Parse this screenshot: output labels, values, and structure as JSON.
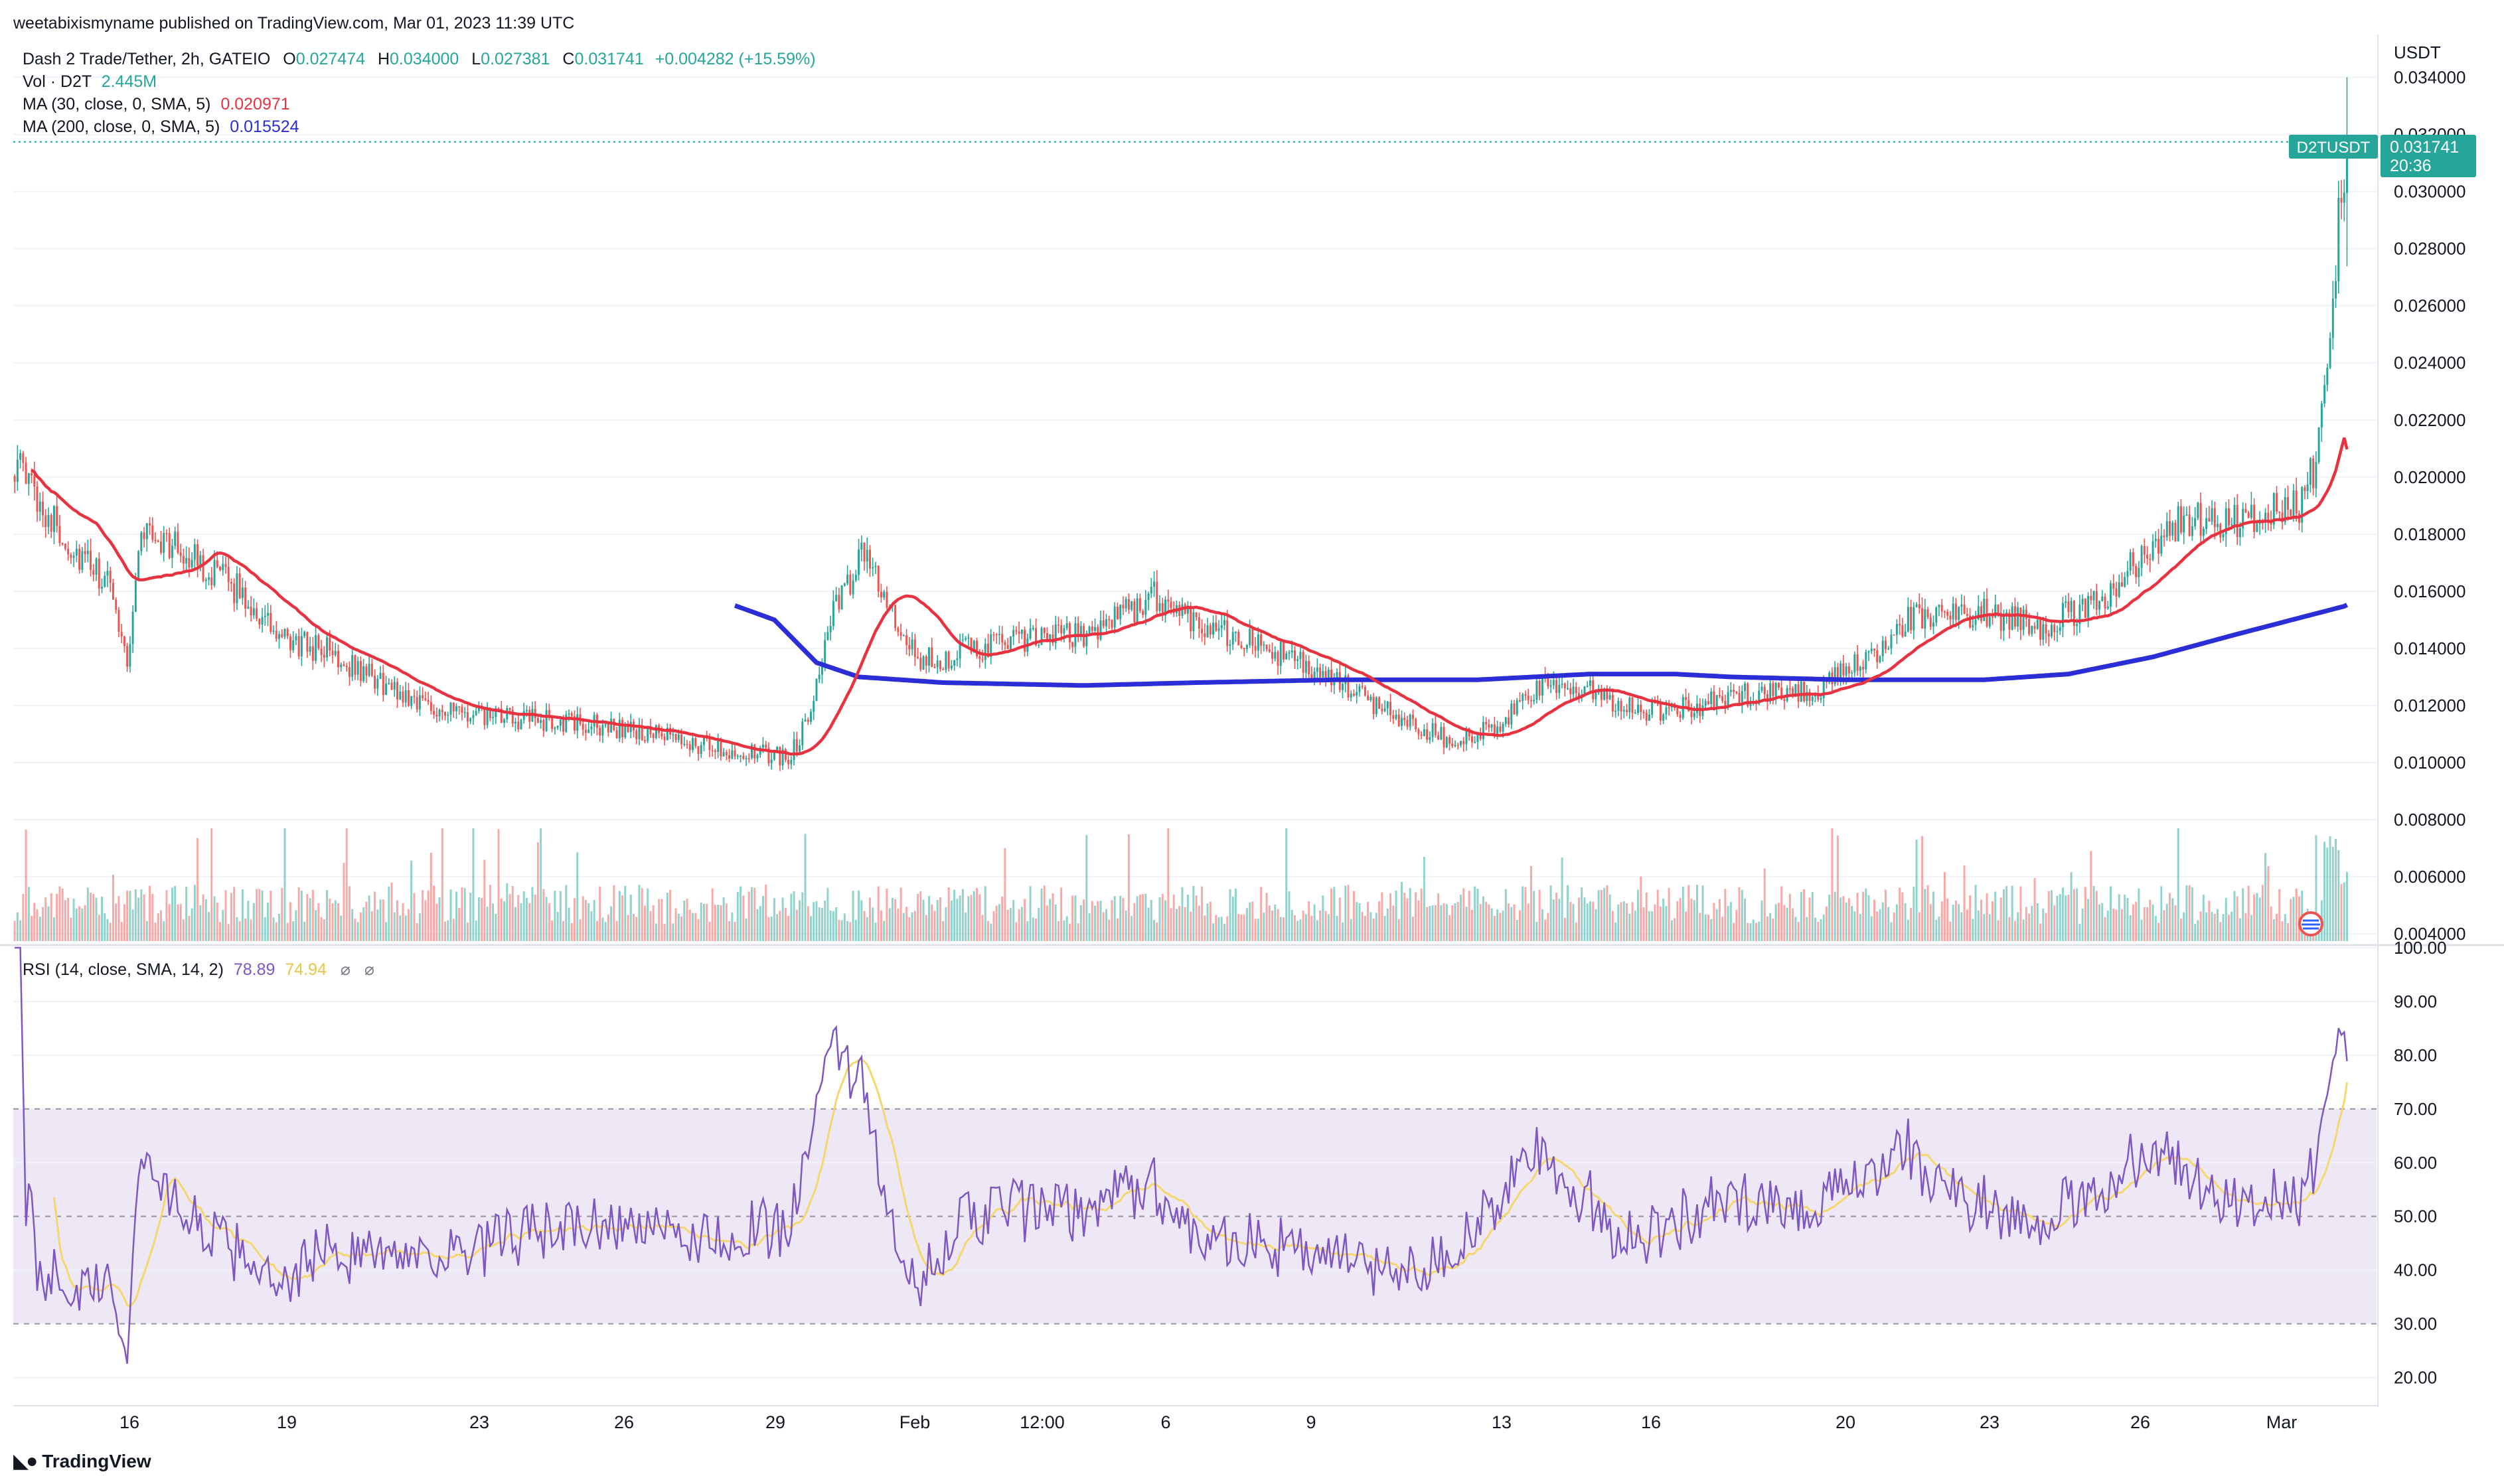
{
  "published": "weetabixismyname published on TradingView.com, Mar 01, 2023 11:39 UTC",
  "symbol": {
    "name": "Dash 2 Trade/Tether, 2h, GATEIO",
    "o_label": "O",
    "o": "0.027474",
    "h_label": "H",
    "h": "0.034000",
    "l_label": "L",
    "l": "0.027381",
    "c_label": "C",
    "c": "0.031741",
    "change": "+0.004282 (+15.59%)"
  },
  "indicators": {
    "vol_label": "Vol · D2T",
    "vol_value": "2.445M",
    "ma30_label": "MA (30, close, 0, SMA, 5)",
    "ma30_value": "0.020971",
    "ma200_label": "MA (200, close, 0, SMA, 5)",
    "ma200_value": "0.015524",
    "rsi_label": "RSI (14, close, SMA, 14, 2)",
    "rsi_value": "78.89",
    "rsi_ma_value": "74.94"
  },
  "colors": {
    "up": "#26a69a",
    "down": "#ef5350",
    "ma30": "#e8323f",
    "ma200": "#2b2dd6",
    "rsi": "#7e57c2",
    "rsi_ma": "#f5d76e",
    "rsi_band": "#ede7f6"
  },
  "price_axis": {
    "unit": "USDT",
    "ticks": [
      "0.034000",
      "0.032000",
      "0.030000",
      "0.028000",
      "0.026000",
      "0.024000",
      "0.022000",
      "0.020000",
      "0.018000",
      "0.016000",
      "0.014000",
      "0.012000",
      "0.010000",
      "0.008000",
      "0.006000",
      "0.004000"
    ],
    "last_symbol": "D2TUSDT",
    "last_price": "0.031741",
    "countdown": "20:36"
  },
  "rsi_axis": {
    "ticks": [
      "100.00",
      "90.00",
      "80.00",
      "70.00",
      "60.00",
      "50.00",
      "40.00",
      "30.00",
      "20.00"
    ]
  },
  "time_axis": {
    "labels": [
      "16",
      "19",
      "23",
      "26",
      "29",
      "Feb",
      "12:00",
      "6",
      "9",
      "13",
      "16",
      "20",
      "23",
      "26",
      "Mar"
    ]
  },
  "chart_data": {
    "type": "candlestick",
    "symbol": "D2TUSDT",
    "interval": "2h",
    "price_range": [
      0.0037,
      0.0355
    ],
    "rsi_range": [
      15,
      100
    ],
    "rsi_band": [
      30,
      70
    ],
    "close_anchors": [
      [
        0,
        0.0205
      ],
      [
        20,
        0.0175
      ],
      [
        35,
        0.016
      ],
      [
        40,
        0.0135
      ],
      [
        45,
        0.0182
      ],
      [
        58,
        0.0175
      ],
      [
        80,
        0.016
      ],
      [
        95,
        0.0142
      ],
      [
        110,
        0.014
      ],
      [
        135,
        0.0125
      ],
      [
        160,
        0.0116
      ],
      [
        185,
        0.0115
      ],
      [
        215,
        0.0112
      ],
      [
        245,
        0.0106
      ],
      [
        262,
        0.0103
      ],
      [
        275,
        0.0102
      ],
      [
        281,
        0.0113
      ],
      [
        290,
        0.015
      ],
      [
        303,
        0.0175
      ],
      [
        312,
        0.015
      ],
      [
        321,
        0.0135
      ],
      [
        350,
        0.0142
      ],
      [
        380,
        0.0145
      ],
      [
        405,
        0.0158
      ],
      [
        420,
        0.015
      ],
      [
        432,
        0.0145
      ],
      [
        450,
        0.0138
      ],
      [
        470,
        0.0128
      ],
      [
        490,
        0.0117
      ],
      [
        510,
        0.0108
      ],
      [
        528,
        0.0112
      ],
      [
        540,
        0.0126
      ],
      [
        556,
        0.0126
      ],
      [
        580,
        0.0118
      ],
      [
        600,
        0.012
      ],
      [
        620,
        0.0125
      ],
      [
        640,
        0.0125
      ],
      [
        660,
        0.0137
      ],
      [
        672,
        0.015
      ],
      [
        700,
        0.0153
      ],
      [
        720,
        0.0148
      ],
      [
        740,
        0.0155
      ],
      [
        755,
        0.0172
      ],
      [
        770,
        0.0185
      ],
      [
        790,
        0.0185
      ],
      [
        812,
        0.019
      ],
      [
        818,
        0.0205
      ],
      [
        822,
        0.024
      ],
      [
        826,
        0.029
      ],
      [
        829,
        0.0317
      ]
    ],
    "ma200_anchors": [
      [
        256,
        0.0155
      ],
      [
        270,
        0.015
      ],
      [
        285,
        0.0135
      ],
      [
        300,
        0.013
      ],
      [
        330,
        0.0128
      ],
      [
        380,
        0.0127
      ],
      [
        420,
        0.0128
      ],
      [
        470,
        0.0129
      ],
      [
        520,
        0.0129
      ],
      [
        560,
        0.0131
      ],
      [
        590,
        0.0131
      ],
      [
        610,
        0.013
      ],
      [
        650,
        0.0129
      ],
      [
        700,
        0.0129
      ],
      [
        730,
        0.0131
      ],
      [
        760,
        0.0137
      ],
      [
        790,
        0.0145
      ],
      [
        829,
        0.0155
      ]
    ],
    "ma30_last": 0.020971,
    "ma200_last": 0.015524,
    "rsi_last": 78.89,
    "rsi_ma_last": 74.94,
    "last_close": 0.031741
  }
}
